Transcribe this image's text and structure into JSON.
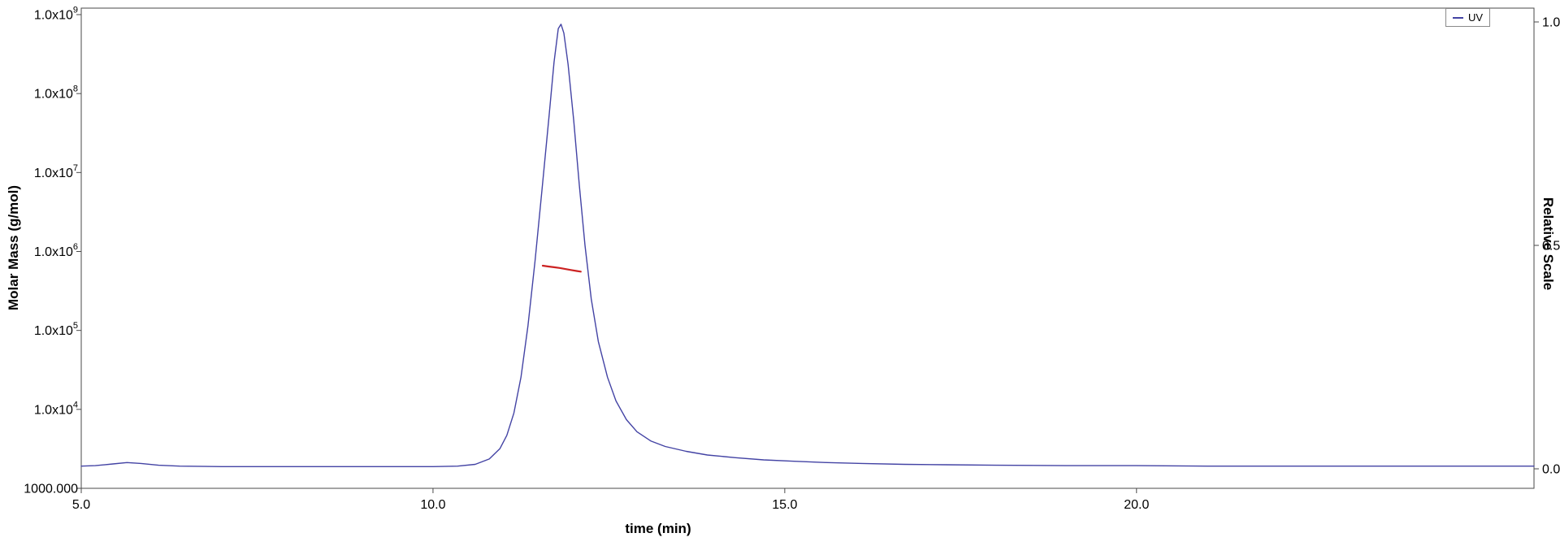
{
  "chart_data": {
    "type": "line",
    "xlabel": "time (min)",
    "ylabel_left": "Molar Mass (g/mol)",
    "ylabel_right": "Relative Scale",
    "x_axis": {
      "range": [
        5.0,
        25.65
      ],
      "ticks": [
        {
          "label": "5.0",
          "value": 5.0
        },
        {
          "label": "10.0",
          "value": 10.0
        },
        {
          "label": "15.0",
          "value": 15.0
        },
        {
          "label": "20.0",
          "value": 20.0
        }
      ]
    },
    "y_left_axis": {
      "scale": "log",
      "log10_range": [
        3,
        9
      ],
      "ticks": [
        {
          "label": "1.0x10",
          "sup": "9",
          "log10": 9
        },
        {
          "label": "1.0x10",
          "sup": "8",
          "log10": 8
        },
        {
          "label": "1.0x10",
          "sup": "7",
          "log10": 7
        },
        {
          "label": "1.0x10",
          "sup": "6",
          "log10": 6
        },
        {
          "label": "1.0x10",
          "sup": "5",
          "log10": 5
        },
        {
          "label": "1.0x10",
          "sup": "4",
          "log10": 4
        },
        {
          "label": "1000.000",
          "sup": "",
          "log10": 3
        }
      ]
    },
    "y_right_axis": {
      "range": [
        0.0,
        1.0
      ],
      "ticks": [
        {
          "label": "1.0",
          "value": 1.0
        },
        {
          "label": "0.5",
          "value": 0.5
        },
        {
          "label": "0.0",
          "value": 0.0
        }
      ]
    },
    "legend": {
      "position": "top-right",
      "entries": [
        {
          "label": "UV",
          "color": "#4343a4"
        }
      ]
    },
    "series": [
      {
        "name": "UV",
        "axis": "right",
        "color": "#4343a4",
        "width": 1.4,
        "points": [
          [
            5.0,
            0.006
          ],
          [
            5.2,
            0.007
          ],
          [
            5.45,
            0.011
          ],
          [
            5.65,
            0.014
          ],
          [
            5.85,
            0.012
          ],
          [
            6.1,
            0.008
          ],
          [
            6.4,
            0.006
          ],
          [
            7.0,
            0.005
          ],
          [
            7.8,
            0.005
          ],
          [
            8.6,
            0.005
          ],
          [
            9.4,
            0.005
          ],
          [
            10.0,
            0.005
          ],
          [
            10.35,
            0.006
          ],
          [
            10.6,
            0.01
          ],
          [
            10.8,
            0.022
          ],
          [
            10.95,
            0.045
          ],
          [
            11.05,
            0.075
          ],
          [
            11.15,
            0.125
          ],
          [
            11.25,
            0.205
          ],
          [
            11.35,
            0.32
          ],
          [
            11.45,
            0.465
          ],
          [
            11.55,
            0.625
          ],
          [
            11.65,
            0.79
          ],
          [
            11.72,
            0.91
          ],
          [
            11.78,
            0.985
          ],
          [
            11.82,
            0.995
          ],
          [
            11.86,
            0.975
          ],
          [
            11.92,
            0.905
          ],
          [
            12.0,
            0.78
          ],
          [
            12.08,
            0.635
          ],
          [
            12.16,
            0.5
          ],
          [
            12.25,
            0.38
          ],
          [
            12.35,
            0.285
          ],
          [
            12.48,
            0.205
          ],
          [
            12.6,
            0.152
          ],
          [
            12.75,
            0.11
          ],
          [
            12.9,
            0.083
          ],
          [
            13.1,
            0.062
          ],
          [
            13.3,
            0.05
          ],
          [
            13.6,
            0.039
          ],
          [
            13.9,
            0.031
          ],
          [
            14.3,
            0.025
          ],
          [
            14.7,
            0.02
          ],
          [
            15.1,
            0.017
          ],
          [
            15.6,
            0.014
          ],
          [
            16.1,
            0.012
          ],
          [
            16.7,
            0.01
          ],
          [
            17.3,
            0.009
          ],
          [
            18.0,
            0.008
          ],
          [
            19.0,
            0.007
          ],
          [
            20.0,
            0.007
          ],
          [
            21.0,
            0.006
          ],
          [
            22.0,
            0.006
          ],
          [
            23.0,
            0.006
          ],
          [
            24.0,
            0.006
          ],
          [
            25.0,
            0.006
          ],
          [
            25.65,
            0.006
          ]
        ]
      },
      {
        "name": "Molar Mass",
        "axis": "left_log",
        "color": "#cc2222",
        "width": 2.2,
        "points": [
          [
            11.56,
            660000
          ],
          [
            11.64,
            645000
          ],
          [
            11.72,
            632000
          ],
          [
            11.8,
            618000
          ],
          [
            11.88,
            600000
          ],
          [
            11.96,
            582000
          ],
          [
            12.04,
            566000
          ],
          [
            12.1,
            556000
          ]
        ]
      }
    ],
    "colors": {
      "axis": "#4a4a4a",
      "text": "#000000",
      "background": "#ffffff"
    }
  }
}
